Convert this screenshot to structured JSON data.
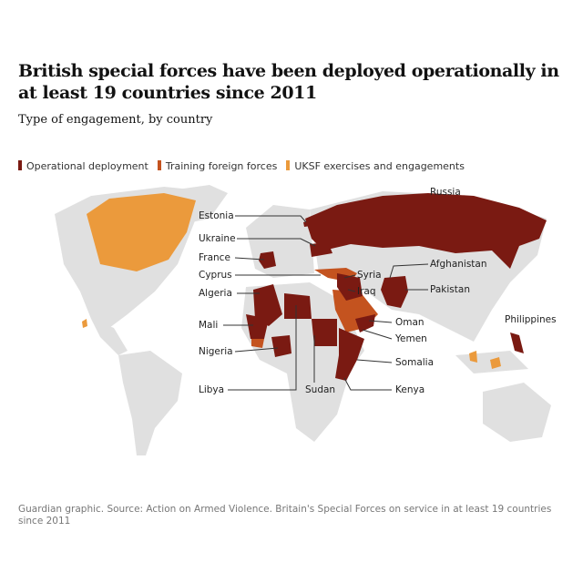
{
  "title": "British special forces have been deployed operationally in at least 19 countries since 2011",
  "subtitle": "Type of engagement, by country",
  "legend": [
    {
      "label": "Operational deployment",
      "color": "#7a1a12"
    },
    {
      "label": "Training foreign forces",
      "color": "#c4531f"
    },
    {
      "label": "UKSF exercises and engagements",
      "color": "#eb9a3c"
    }
  ],
  "labels": [
    "Russia",
    "Estonia",
    "Ukraine",
    "France",
    "Cyprus",
    "Algeria",
    "Mali",
    "Nigeria",
    "Libya",
    "Sudan",
    "Syria",
    "Iraq",
    "Afghanistan",
    "Pakistan",
    "Oman",
    "Yemen",
    "Somalia",
    "Kenya",
    "Philippines"
  ],
  "source": "Guardian graphic. Source: Action on Armed Violence. Britain's Special Forces on service in at least 19 countries since 2011"
}
